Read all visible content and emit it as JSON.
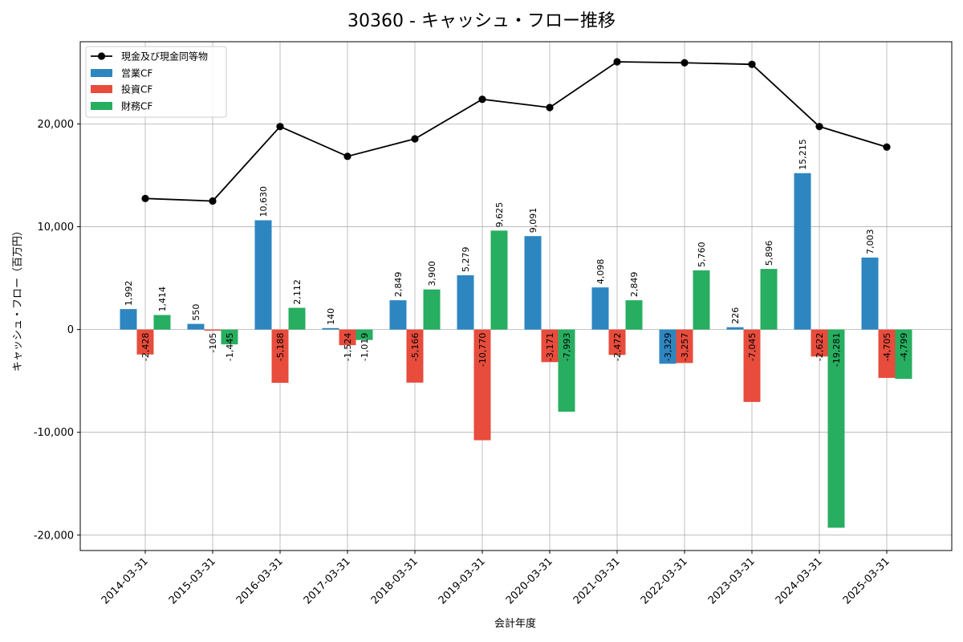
{
  "chart_data": {
    "type": "bar+line",
    "title": "30360 - キャッシュ・フロー推移",
    "xlabel": "会計年度",
    "ylabel": "キャッシュ・フロー（百万円）",
    "categories": [
      "2014-03-31",
      "2015-03-31",
      "2016-03-31",
      "2017-03-31",
      "2018-03-31",
      "2019-03-31",
      "2020-03-31",
      "2021-03-31",
      "2022-03-31",
      "2023-03-31",
      "2024-03-31",
      "2025-03-31"
    ],
    "ylim": [
      -21500,
      28000
    ],
    "yticks": [
      -20000,
      -10000,
      0,
      10000,
      20000
    ],
    "ytick_labels": [
      "-20,000",
      "-10,000",
      "0",
      "10,000",
      "20,000"
    ],
    "grid": true,
    "legend_position": "top-left",
    "series": [
      {
        "name": "営業CF",
        "kind": "bar",
        "color": "#2e86c1",
        "values": [
          1992,
          550,
          10630,
          140,
          2849,
          5279,
          9091,
          4098,
          -3329,
          226,
          15215,
          7003
        ],
        "labels": [
          "1,992",
          "550",
          "10,630",
          "140",
          "2,849",
          "5,279",
          "9,091",
          "4,098",
          "-3,329",
          "226",
          "15,215",
          "7,003"
        ]
      },
      {
        "name": "投資CF",
        "kind": "bar",
        "color": "#e74c3c",
        "values": [
          -2428,
          -105,
          -5188,
          -1524,
          -5166,
          -10770,
          -3171,
          -2472,
          -3257,
          -7045,
          -2622,
          -4705
        ],
        "labels": [
          "-2,428",
          "-105",
          "-5,188",
          "-1,524",
          "-5,166",
          "-10,770",
          "-3,171",
          "-2,472",
          "-3,257",
          "-7,045",
          "-2,622",
          "-4,705"
        ]
      },
      {
        "name": "財務CF",
        "kind": "bar",
        "color": "#27ae60",
        "values": [
          1414,
          -1445,
          2112,
          -1019,
          3900,
          9625,
          -7993,
          2849,
          5760,
          5896,
          -19281,
          -4799
        ],
        "labels": [
          "1,414",
          "-1,445",
          "2,112",
          "-1,019",
          "3,900",
          "9,625",
          "-7,993",
          "2,849",
          "5,760",
          "5,896",
          "-19,281",
          "-4,799"
        ]
      },
      {
        "name": "現金及び現金同等物",
        "kind": "line",
        "color": "#000000",
        "values": [
          12750,
          12500,
          19750,
          16850,
          18550,
          22400,
          21600,
          26050,
          25950,
          25800,
          19750,
          17750
        ]
      }
    ],
    "legend": [
      "現金及び現金同等物",
      "営業CF",
      "投資CF",
      "財務CF"
    ]
  }
}
